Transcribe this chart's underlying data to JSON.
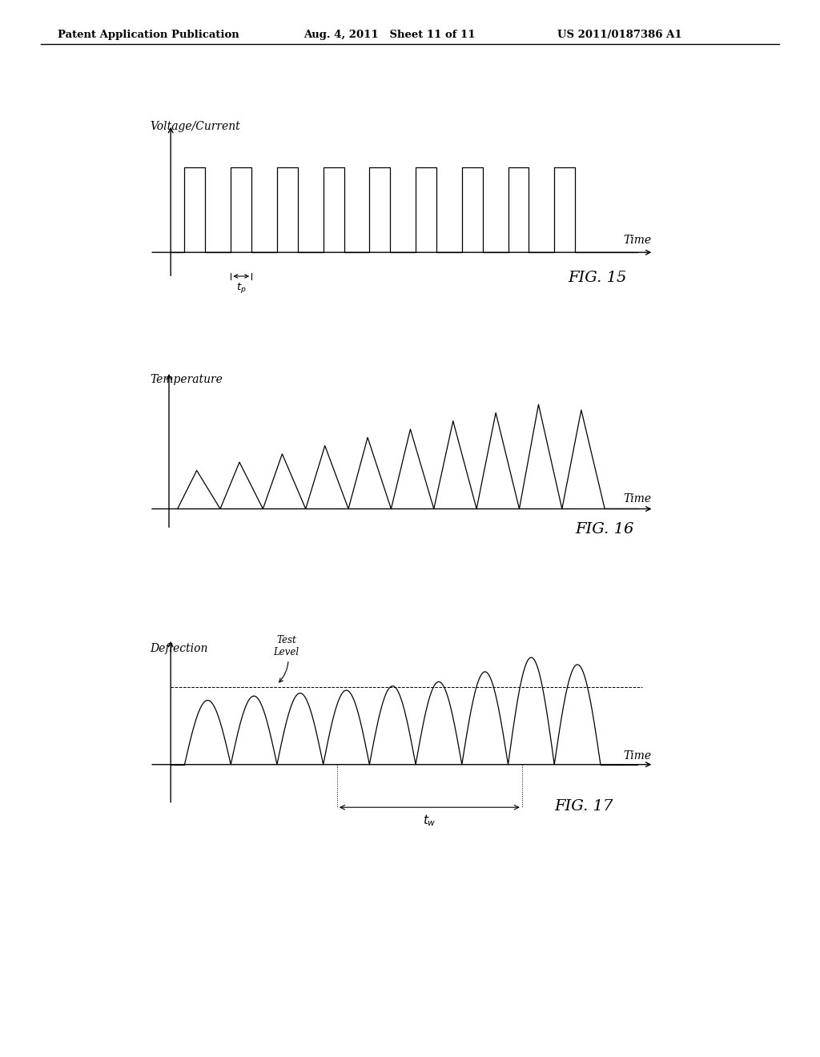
{
  "header_left": "Patent Application Publication",
  "header_mid": "Aug. 4, 2011   Sheet 11 of 11",
  "header_right": "US 2011/0187386 A1",
  "background_color": "#ffffff",
  "line_color": "#000000",
  "fig15_ylabel": "Voltage/Current",
  "fig15_xlabel": "Time",
  "fig15_label": "FIG. 15",
  "fig16_ylabel": "Temperature",
  "fig16_xlabel": "Time",
  "fig16_label": "FIG. 16",
  "fig17_ylabel": "Deflection",
  "fig17_xlabel": "Time",
  "fig17_label": "FIG. 17",
  "fig17_tw_label": "t_w",
  "fig17_testlevel_label": "Test\nLevel"
}
